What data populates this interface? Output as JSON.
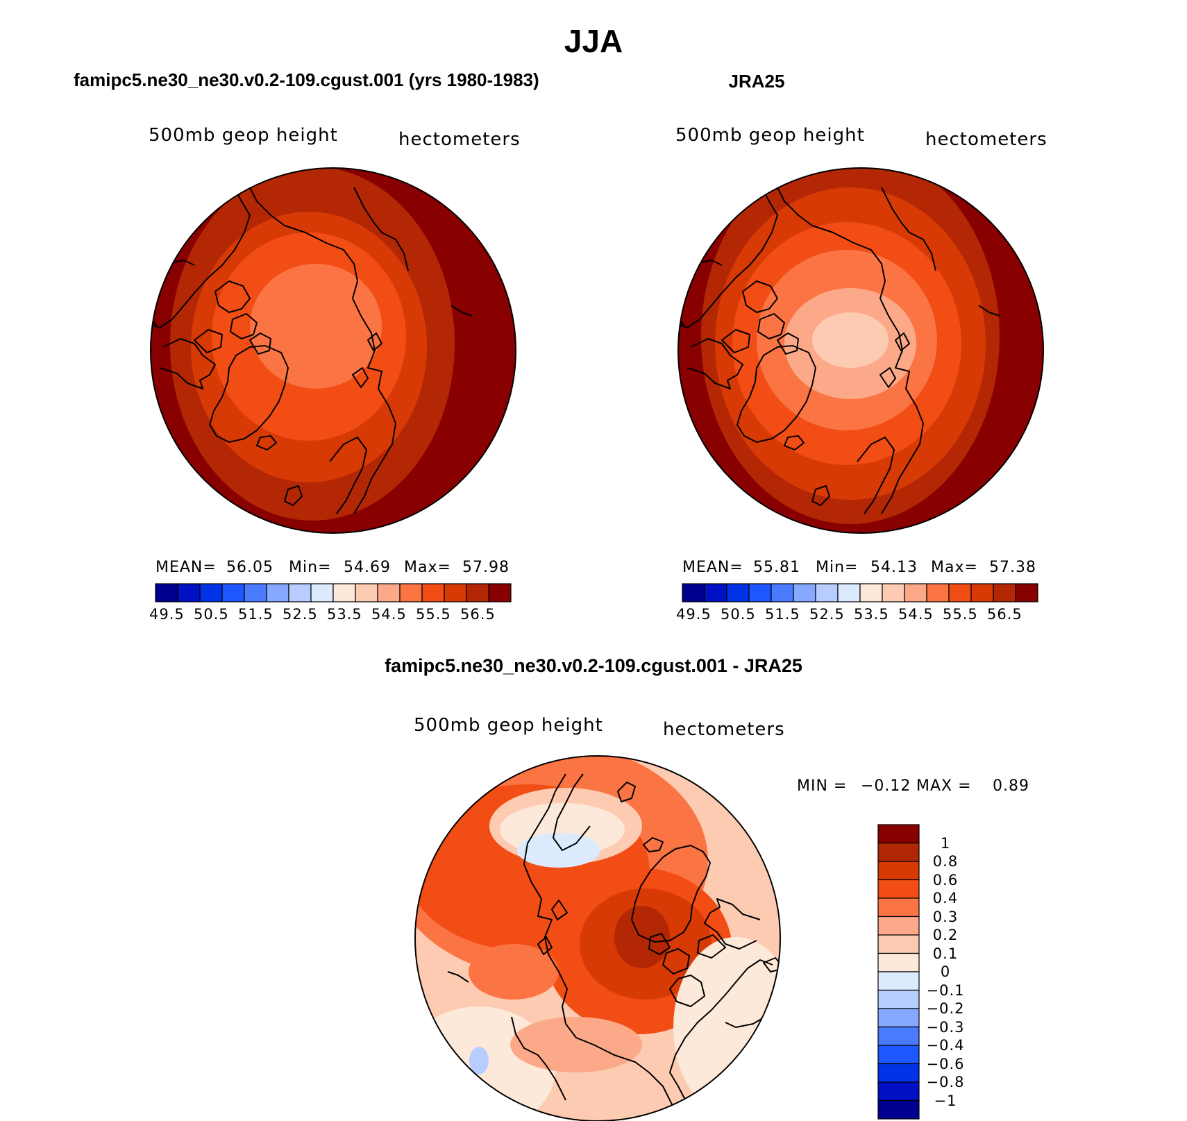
{
  "title": "JJA",
  "panels": [
    {
      "id": "model",
      "case_title": "famipc5.ne30_ne30.v0.2-109.cgust.001 (yrs 1980-1983)",
      "variable": "500mb geop height",
      "units": "hectometers",
      "stats": {
        "mean_label": "MEAN=",
        "mean": "56.05",
        "min_label": "Min=",
        "min": "54.69",
        "max_label": "Max=",
        "max": "57.98"
      }
    },
    {
      "id": "obs",
      "case_title": "JRA25",
      "variable": "500mb geop height",
      "units": "hectometers",
      "stats": {
        "mean_label": "MEAN=",
        "mean": "55.81",
        "min_label": "Min=",
        "min": "54.13",
        "max_label": "Max=",
        "max": "57.38"
      }
    }
  ],
  "difference": {
    "case_title": "famipc5.ne30_ne30.v0.2-109.cgust.001 - JRA25",
    "variable": "500mb geop height",
    "units": "hectometers",
    "stats": {
      "min_label": "MIN =",
      "min": "−0.12",
      "max_label": "MAX =",
      "max": "0.89"
    }
  },
  "abs_colorbar": {
    "colors": [
      "#00008f",
      "#0011c4",
      "#0033e6",
      "#1e56ff",
      "#4a7bff",
      "#86a8ff",
      "#b8cdff",
      "#dbeafd",
      "#fde9d9",
      "#fdcbb1",
      "#fca98a",
      "#fb7444",
      "#f24d14",
      "#d83a05",
      "#b42705",
      "#880000"
    ],
    "tick_labels": [
      "49.5",
      "50.5",
      "51.5",
      "52.5",
      "53.5",
      "54.5",
      "55.5",
      "56.5"
    ]
  },
  "diff_colorbar": {
    "colors_top_to_bottom": [
      "#880000",
      "#b02705",
      "#d83a05",
      "#f24d14",
      "#fb7444",
      "#fca98a",
      "#fdcbb1",
      "#fde9d9",
      "#dbeafd",
      "#b8cdff",
      "#86a8ff",
      "#4a7bff",
      "#1e56ff",
      "#0033e6",
      "#0011c4",
      "#00008f"
    ],
    "tick_labels": [
      "1",
      "0.8",
      "0.6",
      "0.4",
      "0.3",
      "0.2",
      "0.1",
      "0",
      "−0.1",
      "−0.2",
      "−0.3",
      "−0.4",
      "−0.6",
      "−0.8",
      "−1"
    ]
  },
  "map_layers": {
    "model": [
      {
        "color": "#880000",
        "value": "57.5"
      },
      {
        "color": "#b42705",
        "value": "57.0"
      },
      {
        "color": "#d83a05",
        "value": "56.5"
      },
      {
        "color": "#f24d14",
        "value": "56.0"
      },
      {
        "color": "#fb7444",
        "value": "55.5"
      }
    ],
    "obs": [
      {
        "color": "#880000",
        "value": "57.0"
      },
      {
        "color": "#b42705",
        "value": "56.5"
      },
      {
        "color": "#d83a05",
        "value": "56.0"
      },
      {
        "color": "#f24d14",
        "value": "55.5"
      },
      {
        "color": "#fb7444",
        "value": "55.0"
      },
      {
        "color": "#fca98a",
        "value": "54.5"
      }
    ]
  }
}
